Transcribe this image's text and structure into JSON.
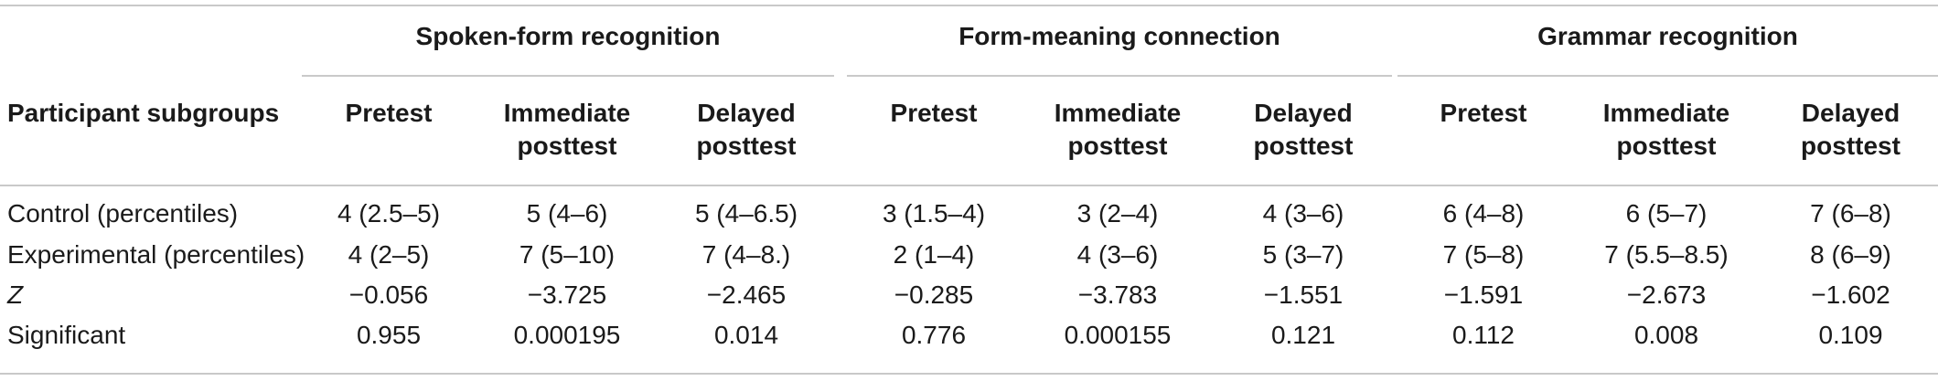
{
  "table": {
    "groups": [
      "Spoken-form recognition",
      "Form-meaning connection",
      "Grammar recognition"
    ],
    "row_header_label": "Participant subgroups",
    "sub_headers": [
      [
        "Pretest"
      ],
      [
        "Immediate",
        "posttest"
      ],
      [
        "Delayed",
        "posttest"
      ],
      [
        "Pretest"
      ],
      [
        "Immediate",
        "posttest"
      ],
      [
        "Delayed",
        "posttest"
      ],
      [
        "Pretest"
      ],
      [
        "Immediate",
        "posttest"
      ],
      [
        "Delayed",
        "posttest"
      ]
    ],
    "rows": [
      {
        "label": "Control (percentiles)",
        "italic": false,
        "values": [
          "4 (2.5–5)",
          "5 (4–6)",
          "5 (4–6.5)",
          "3 (1.5–4)",
          "3 (2–4)",
          "4 (3–6)",
          "6 (4–8)",
          "6 (5–7)",
          "7 (6–8)"
        ]
      },
      {
        "label": "Experimental (percentiles)",
        "italic": false,
        "values": [
          "4 (2–5)",
          "7 (5–10)",
          "7 (4–8.)",
          "2 (1–4)",
          "4 (3–6)",
          "5 (3–7)",
          "7 (5–8)",
          "7 (5.5–8.5)",
          "8 (6–9)"
        ]
      },
      {
        "label": "Z",
        "italic": true,
        "values": [
          "−0.056",
          "−3.725",
          "−2.465",
          "−0.285",
          "−3.783",
          "−1.551",
          "−1.591",
          "−2.673",
          "−1.602"
        ]
      },
      {
        "label": "Significant",
        "italic": false,
        "values": [
          "0.955",
          "0.000195",
          "0.014",
          "0.776",
          "0.000155",
          "0.121",
          "0.112",
          "0.008",
          "0.109"
        ]
      }
    ]
  }
}
